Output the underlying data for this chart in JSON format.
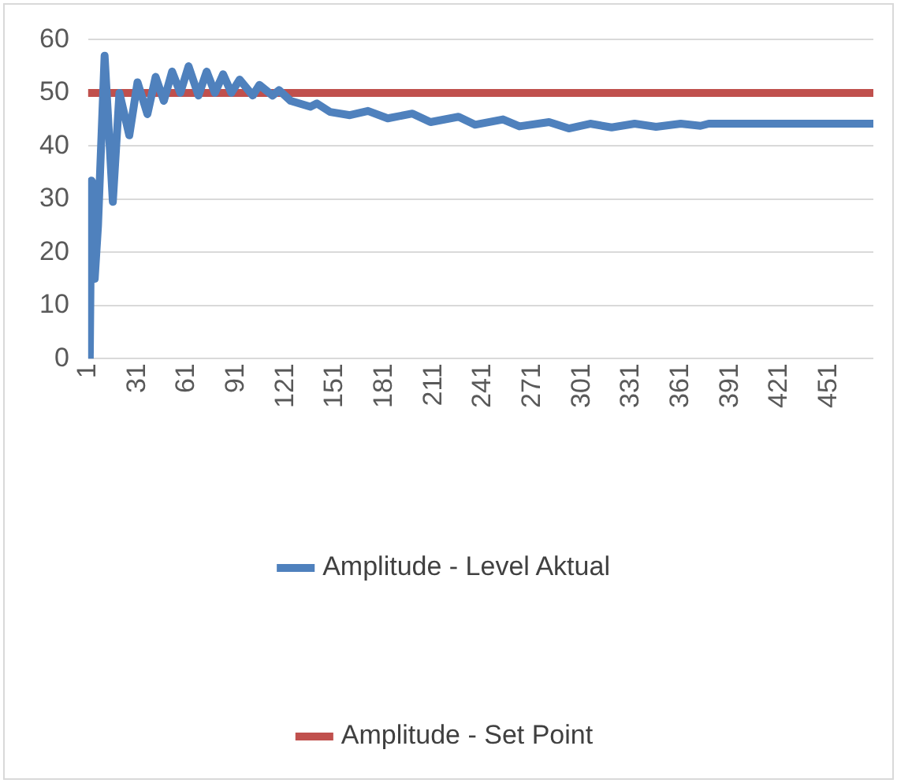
{
  "chart_data": {
    "type": "line",
    "xlim": [
      1,
      478
    ],
    "xticks": [
      1,
      31,
      61,
      91,
      121,
      151,
      181,
      211,
      241,
      271,
      301,
      331,
      361,
      391,
      421,
      451
    ],
    "ylim": [
      0,
      60
    ],
    "yticks": [
      0,
      10,
      20,
      30,
      40,
      50,
      60
    ],
    "grid": "y",
    "legend": "bottom",
    "marker": "none",
    "line_style": "solid",
    "series": [
      {
        "name": "Amplitude - Level Aktual",
        "color": "#4f81bd",
        "x": [
          1,
          2,
          3,
          4,
          5,
          7,
          11,
          16,
          20,
          26,
          31,
          37,
          42,
          47,
          52,
          57,
          62,
          68,
          73,
          78,
          83,
          88,
          93,
          101,
          105,
          113,
          117,
          124,
          136,
          140,
          148,
          160,
          171,
          183,
          198,
          209,
          226,
          236,
          253,
          263,
          281,
          293,
          306,
          319,
          333,
          346,
          361,
          373,
          378,
          478
        ],
        "values": [
          0,
          0,
          33.5,
          33,
          15,
          25,
          57,
          29.5,
          50,
          42,
          52,
          46,
          53,
          48.5,
          54,
          50,
          55,
          49.5,
          54,
          50,
          53.5,
          50,
          52.5,
          49.5,
          51.5,
          49.5,
          50.5,
          48.5,
          47.4,
          48,
          46.4,
          45.8,
          46.6,
          45.2,
          46.1,
          44.5,
          45.5,
          44,
          45,
          43.7,
          44.5,
          43.3,
          44.2,
          43.5,
          44.2,
          43.6,
          44.2,
          43.8,
          44.2,
          44.2
        ]
      },
      {
        "name": "Amplitude - Set Point",
        "color": "#c0504d",
        "x": [
          1,
          478
        ],
        "values": [
          50,
          50
        ]
      }
    ]
  }
}
